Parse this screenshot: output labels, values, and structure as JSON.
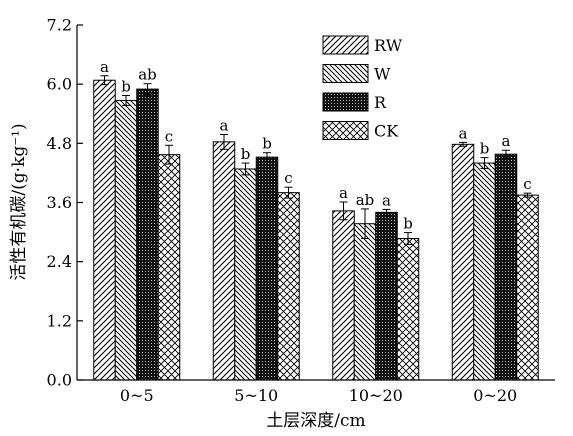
{
  "chart_data": {
    "type": "bar",
    "xlabel": "土层深度/cm",
    "ylabel": "活性有机碳/(g·kg⁻¹)",
    "ylim": [
      0,
      7.2
    ],
    "yticks": [
      "0.0",
      "1.2",
      "2.4",
      "3.6",
      "4.8",
      "6.0",
      "7.2"
    ],
    "categories": [
      "0~5",
      "5~10",
      "10~20",
      "0~20"
    ],
    "grid": false,
    "legend_position": "top-right",
    "series": [
      {
        "name": "RW",
        "pattern": "hatch-forward",
        "values": [
          6.08,
          4.83,
          3.43,
          4.78
        ],
        "errors": [
          0.09,
          0.15,
          0.18,
          0.04
        ],
        "labels": [
          "a",
          "a",
          "a",
          "a"
        ]
      },
      {
        "name": "W",
        "pattern": "hatch-backward",
        "values": [
          5.67,
          4.28,
          3.17,
          4.4
        ],
        "errors": [
          0.1,
          0.12,
          0.3,
          0.11
        ],
        "labels": [
          "b",
          "b",
          "ab",
          "b"
        ]
      },
      {
        "name": "R",
        "pattern": "dense-dots",
        "values": [
          5.9,
          4.52,
          3.4,
          4.58
        ],
        "errors": [
          0.11,
          0.09,
          0.06,
          0.08
        ],
        "labels": [
          "ab",
          "b",
          "a",
          "a"
        ]
      },
      {
        "name": "CK",
        "pattern": "crosshatch",
        "values": [
          4.57,
          3.8,
          2.87,
          3.75
        ],
        "errors": [
          0.19,
          0.11,
          0.12,
          0.04
        ],
        "labels": [
          "c",
          "c",
          "b",
          "c"
        ]
      }
    ]
  }
}
